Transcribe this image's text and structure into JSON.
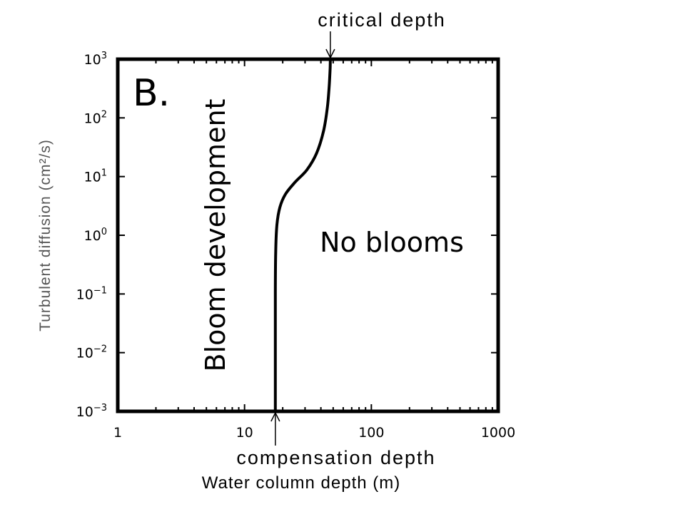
{
  "chart_data": {
    "type": "line",
    "panel_label": "B.",
    "xlabel": "Water column depth (m)",
    "ylabel": "Turbulent diffusion (cm²/s)",
    "xscale": "log",
    "yscale": "log",
    "xlim": [
      1,
      1000
    ],
    "ylim": [
      0.001,
      1000
    ],
    "x_ticks": [
      {
        "value": 1,
        "label": "1"
      },
      {
        "value": 10,
        "label": "10"
      },
      {
        "value": 100,
        "label": "100"
      },
      {
        "value": 1000,
        "label": "1000"
      }
    ],
    "y_ticks": [
      {
        "value": 0.001,
        "base": "10",
        "exp": "−3"
      },
      {
        "value": 0.01,
        "base": "10",
        "exp": "−2"
      },
      {
        "value": 0.1,
        "base": "10",
        "exp": "−1"
      },
      {
        "value": 1,
        "base": "10",
        "exp": "0"
      },
      {
        "value": 10,
        "base": "10",
        "exp": "1"
      },
      {
        "value": 100,
        "base": "10",
        "exp": "2"
      },
      {
        "value": 1000,
        "base": "10",
        "exp": "3"
      }
    ],
    "grid": false,
    "series": [
      {
        "x": [
          17.5,
          17.5,
          17.6,
          18.0,
          19.0,
          21.0,
          25.0,
          31.0,
          37.0,
          42.0,
          45.0,
          46.5,
          47.3,
          47.5
        ],
        "y": [
          0.001,
          0.1,
          0.5,
          1.5,
          3,
          5,
          8,
          13,
          25,
          60,
          150,
          350,
          700,
          1000
        ]
      }
    ],
    "annotations": {
      "top": "critical depth",
      "bottom": "compensation depth",
      "left_region": "Bloom development",
      "right_region": "No blooms"
    },
    "line_color": "#000000"
  }
}
